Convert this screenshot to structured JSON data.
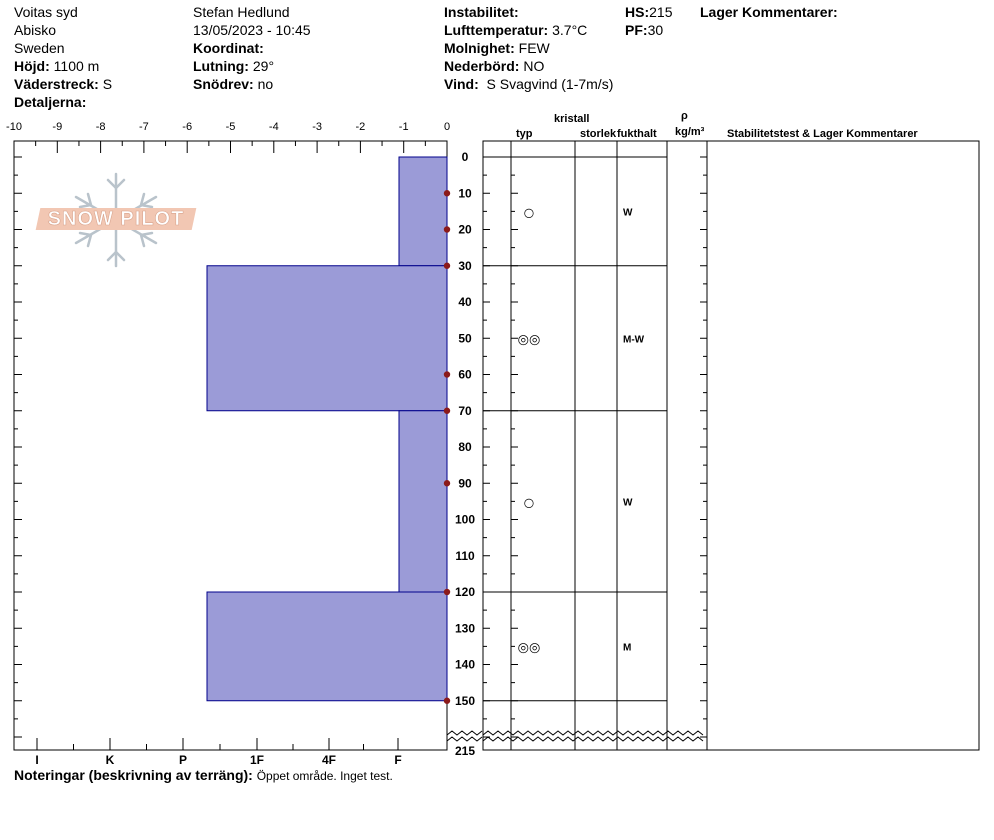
{
  "header": {
    "location": "Voitas syd",
    "region": "Abisko",
    "country": "Sweden",
    "elevation_label": "Höjd:",
    "elevation": "1100 m",
    "aspect_label": "Väderstreck:",
    "aspect": "S",
    "details_label": "Detaljerna:",
    "observer": "Stefan Hedlund",
    "datetime": "13/05/2023 - 10:45",
    "coord_label": "Koordinat:",
    "slope_label": "Lutning:",
    "slope": "29°",
    "drift_label": "Snödrev:",
    "drift": "no",
    "instability_label": "Instabilitet:",
    "airtemp_label": "Lufttemperatur:",
    "airtemp": "3.7°C",
    "cloud_label": "Molnighet:",
    "cloud": "FEW",
    "precip_label": "Nederbörd:",
    "precip": "NO",
    "wind_label": "Vind:",
    "wind": "S Svagvind (1-7m/s)",
    "hs_label": "HS:",
    "hs": "215",
    "pf_label": "PF:",
    "pf": "30",
    "layer_comments_label": "Lager Kommentarer:"
  },
  "logo": {
    "text": "SNOW PILOT"
  },
  "columns": {
    "crystal": "kristall",
    "type": "typ",
    "size": "storlek",
    "moisture": "fukthalt",
    "rho": "ρ",
    "density_unit": "kg/m³",
    "stability": "Stabilitetstest & Lager Kommentarer"
  },
  "notes": {
    "label": "Noteringar (beskrivning av terräng):",
    "text": "Öppet område.  Inget test."
  },
  "chart_data": {
    "type": "bar",
    "temp_axis": {
      "ticks": [
        -10,
        -9,
        -8,
        -7,
        -6,
        -5,
        -4,
        -3,
        -2,
        -1,
        0
      ],
      "range": [
        -10,
        0
      ]
    },
    "depth_axis": {
      "ticks": [
        0,
        10,
        20,
        30,
        40,
        50,
        60,
        70,
        80,
        90,
        100,
        110,
        120,
        130,
        140,
        150
      ],
      "break_label": "215",
      "range": [
        0,
        150
      ]
    },
    "hardness_labels": [
      "I",
      "K",
      "P",
      "1F",
      "4F",
      "F"
    ],
    "temperature_points_depths": [
      10,
      20,
      30,
      60,
      70,
      90,
      120,
      150
    ],
    "layers": [
      {
        "top": 0,
        "bottom": 30,
        "hardness": "F",
        "grain_symbol": "○",
        "moisture": "W"
      },
      {
        "top": 30,
        "bottom": 70,
        "hardness": "1F+",
        "grain_symbol": "◎◎",
        "moisture": "M-W"
      },
      {
        "top": 70,
        "bottom": 120,
        "hardness": "F",
        "grain_symbol": "○",
        "moisture": "W"
      },
      {
        "top": 120,
        "bottom": 150,
        "hardness": "1F+",
        "grain_symbol": "◎◎",
        "moisture": "M"
      }
    ],
    "colors": {
      "bar": "#9b9bd7",
      "bar_border": "#00008b",
      "temp_point": "#8b1a1a"
    }
  }
}
